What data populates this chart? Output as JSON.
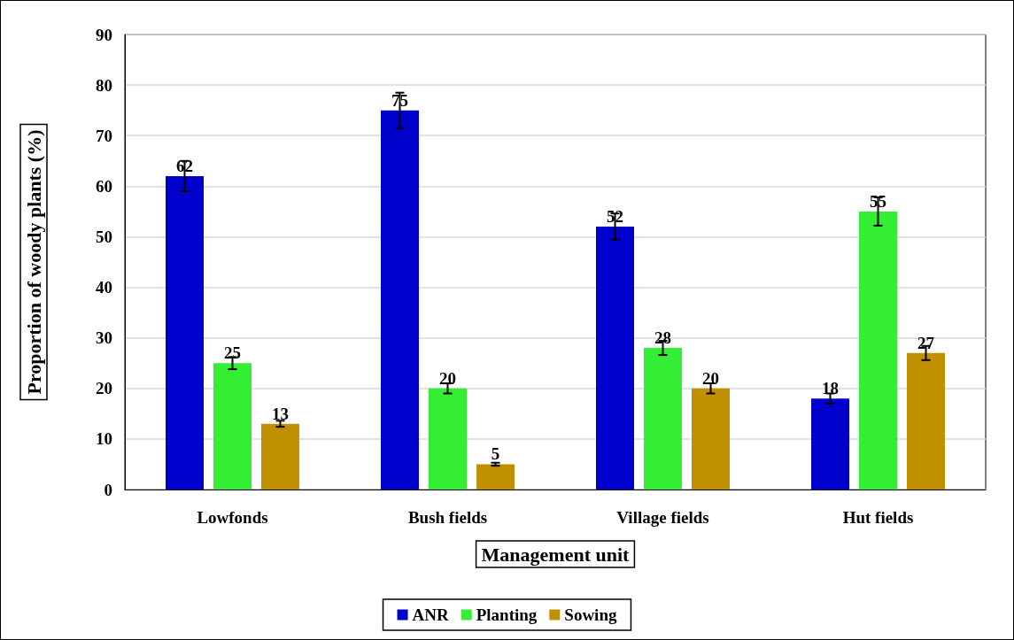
{
  "chart_data": {
    "type": "bar",
    "xlabel": "Management unit",
    "ylabel": "Proportion of woody plants (%)",
    "categories": [
      "Lowfonds",
      "Bush fields",
      "Village fields",
      "Hut fields"
    ],
    "series": [
      {
        "name": "ANR",
        "color": "#0000cc",
        "values": [
          62,
          75,
          52,
          18
        ],
        "errors": [
          3,
          3.5,
          2.6,
          1
        ]
      },
      {
        "name": "Planting",
        "color": "#33ee33",
        "values": [
          25,
          20,
          28,
          55
        ],
        "errors": [
          1.2,
          1,
          1.4,
          2.8
        ]
      },
      {
        "name": "Sowing",
        "color": "#c09000",
        "values": [
          13,
          5,
          20,
          27
        ],
        "errors": [
          0.6,
          0.3,
          1,
          1.4
        ]
      }
    ],
    "ylim": [
      0,
      90
    ],
    "yticks": [
      0,
      10,
      20,
      30,
      40,
      50,
      60,
      70,
      80,
      90
    ],
    "grid": "y",
    "legend": "bottom",
    "data_labels": true
  }
}
